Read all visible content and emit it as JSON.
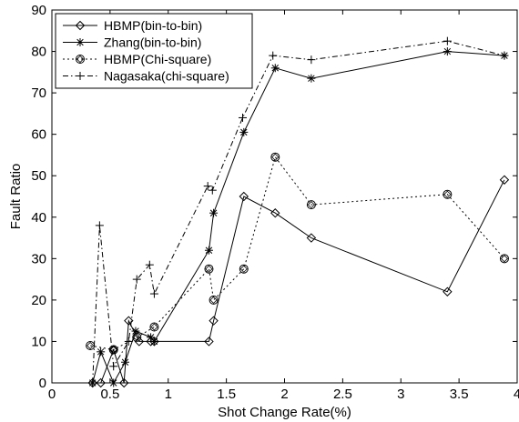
{
  "chart_data": {
    "type": "line",
    "title": "",
    "xlabel": "Shot Change Rate(%)",
    "ylabel": "Fault Ratio",
    "xlim": [
      0,
      4
    ],
    "ylim": [
      0,
      90
    ],
    "xticks": [
      0,
      0.5,
      1,
      1.5,
      2,
      2.5,
      3,
      3.5,
      4
    ],
    "xtick_labels": [
      "0",
      "0.5",
      "1",
      "1.5",
      "2",
      "2.5",
      "3",
      "3.5",
      "4"
    ],
    "yticks": [
      0,
      10,
      20,
      30,
      40,
      50,
      60,
      70,
      80,
      90
    ],
    "ytick_labels": [
      "0",
      "10",
      "20",
      "30",
      "40",
      "50",
      "60",
      "70",
      "80",
      "90"
    ],
    "grid": false,
    "legend_position": "top-left",
    "series": [
      {
        "name": "HBMP(bin-to-bin)",
        "line_style": "solid",
        "marker": "diamond",
        "color": "#000000",
        "points": [
          [
            0.35,
            0
          ],
          [
            0.42,
            0
          ],
          [
            0.53,
            8
          ],
          [
            0.62,
            0
          ],
          [
            0.66,
            15
          ],
          [
            0.75,
            10
          ],
          [
            0.85,
            10
          ],
          [
            0.88,
            10
          ],
          [
            1.35,
            10
          ],
          [
            1.39,
            15
          ],
          [
            1.65,
            45
          ],
          [
            1.92,
            41
          ],
          [
            2.23,
            35
          ],
          [
            3.4,
            22
          ],
          [
            3.89,
            49
          ]
        ]
      },
      {
        "name": "Zhang(bin-to-bin)",
        "line_style": "solid",
        "marker": "asterisk",
        "color": "#000000",
        "points": [
          [
            0.35,
            0
          ],
          [
            0.42,
            7.5
          ],
          [
            0.53,
            0
          ],
          [
            0.63,
            5
          ],
          [
            0.72,
            12.5
          ],
          [
            0.85,
            11
          ],
          [
            0.88,
            10
          ],
          [
            1.35,
            32
          ],
          [
            1.39,
            41
          ],
          [
            1.65,
            60.5
          ],
          [
            1.92,
            76
          ],
          [
            2.23,
            73.5
          ],
          [
            3.4,
            80
          ],
          [
            3.89,
            79
          ]
        ]
      },
      {
        "name": "HBMP(Chi-square)",
        "line_style": "dotted",
        "marker": "circle-diamond",
        "color": "#000000",
        "points": [
          [
            0.33,
            9
          ],
          [
            0.53,
            8
          ],
          [
            0.73,
            11
          ],
          [
            0.88,
            13.5
          ],
          [
            1.35,
            27.5
          ],
          [
            1.39,
            20
          ],
          [
            1.65,
            27.5
          ],
          [
            1.92,
            54.5
          ],
          [
            2.23,
            43
          ],
          [
            3.4,
            45.5
          ],
          [
            3.89,
            30
          ]
        ]
      },
      {
        "name": "Nagasaka(chi-square)",
        "line_style": "dashdot",
        "marker": "plus",
        "color": "#000000",
        "points": [
          [
            0.35,
            0
          ],
          [
            0.41,
            38
          ],
          [
            0.53,
            4
          ],
          [
            0.66,
            10
          ],
          [
            0.73,
            25
          ],
          [
            0.84,
            28.5
          ],
          [
            0.88,
            21.5
          ],
          [
            1.34,
            47.5
          ],
          [
            1.38,
            46.5
          ],
          [
            1.64,
            64
          ],
          [
            1.9,
            79
          ],
          [
            2.23,
            78
          ],
          [
            3.4,
            82.5
          ],
          [
            3.89,
            79
          ]
        ]
      }
    ]
  }
}
